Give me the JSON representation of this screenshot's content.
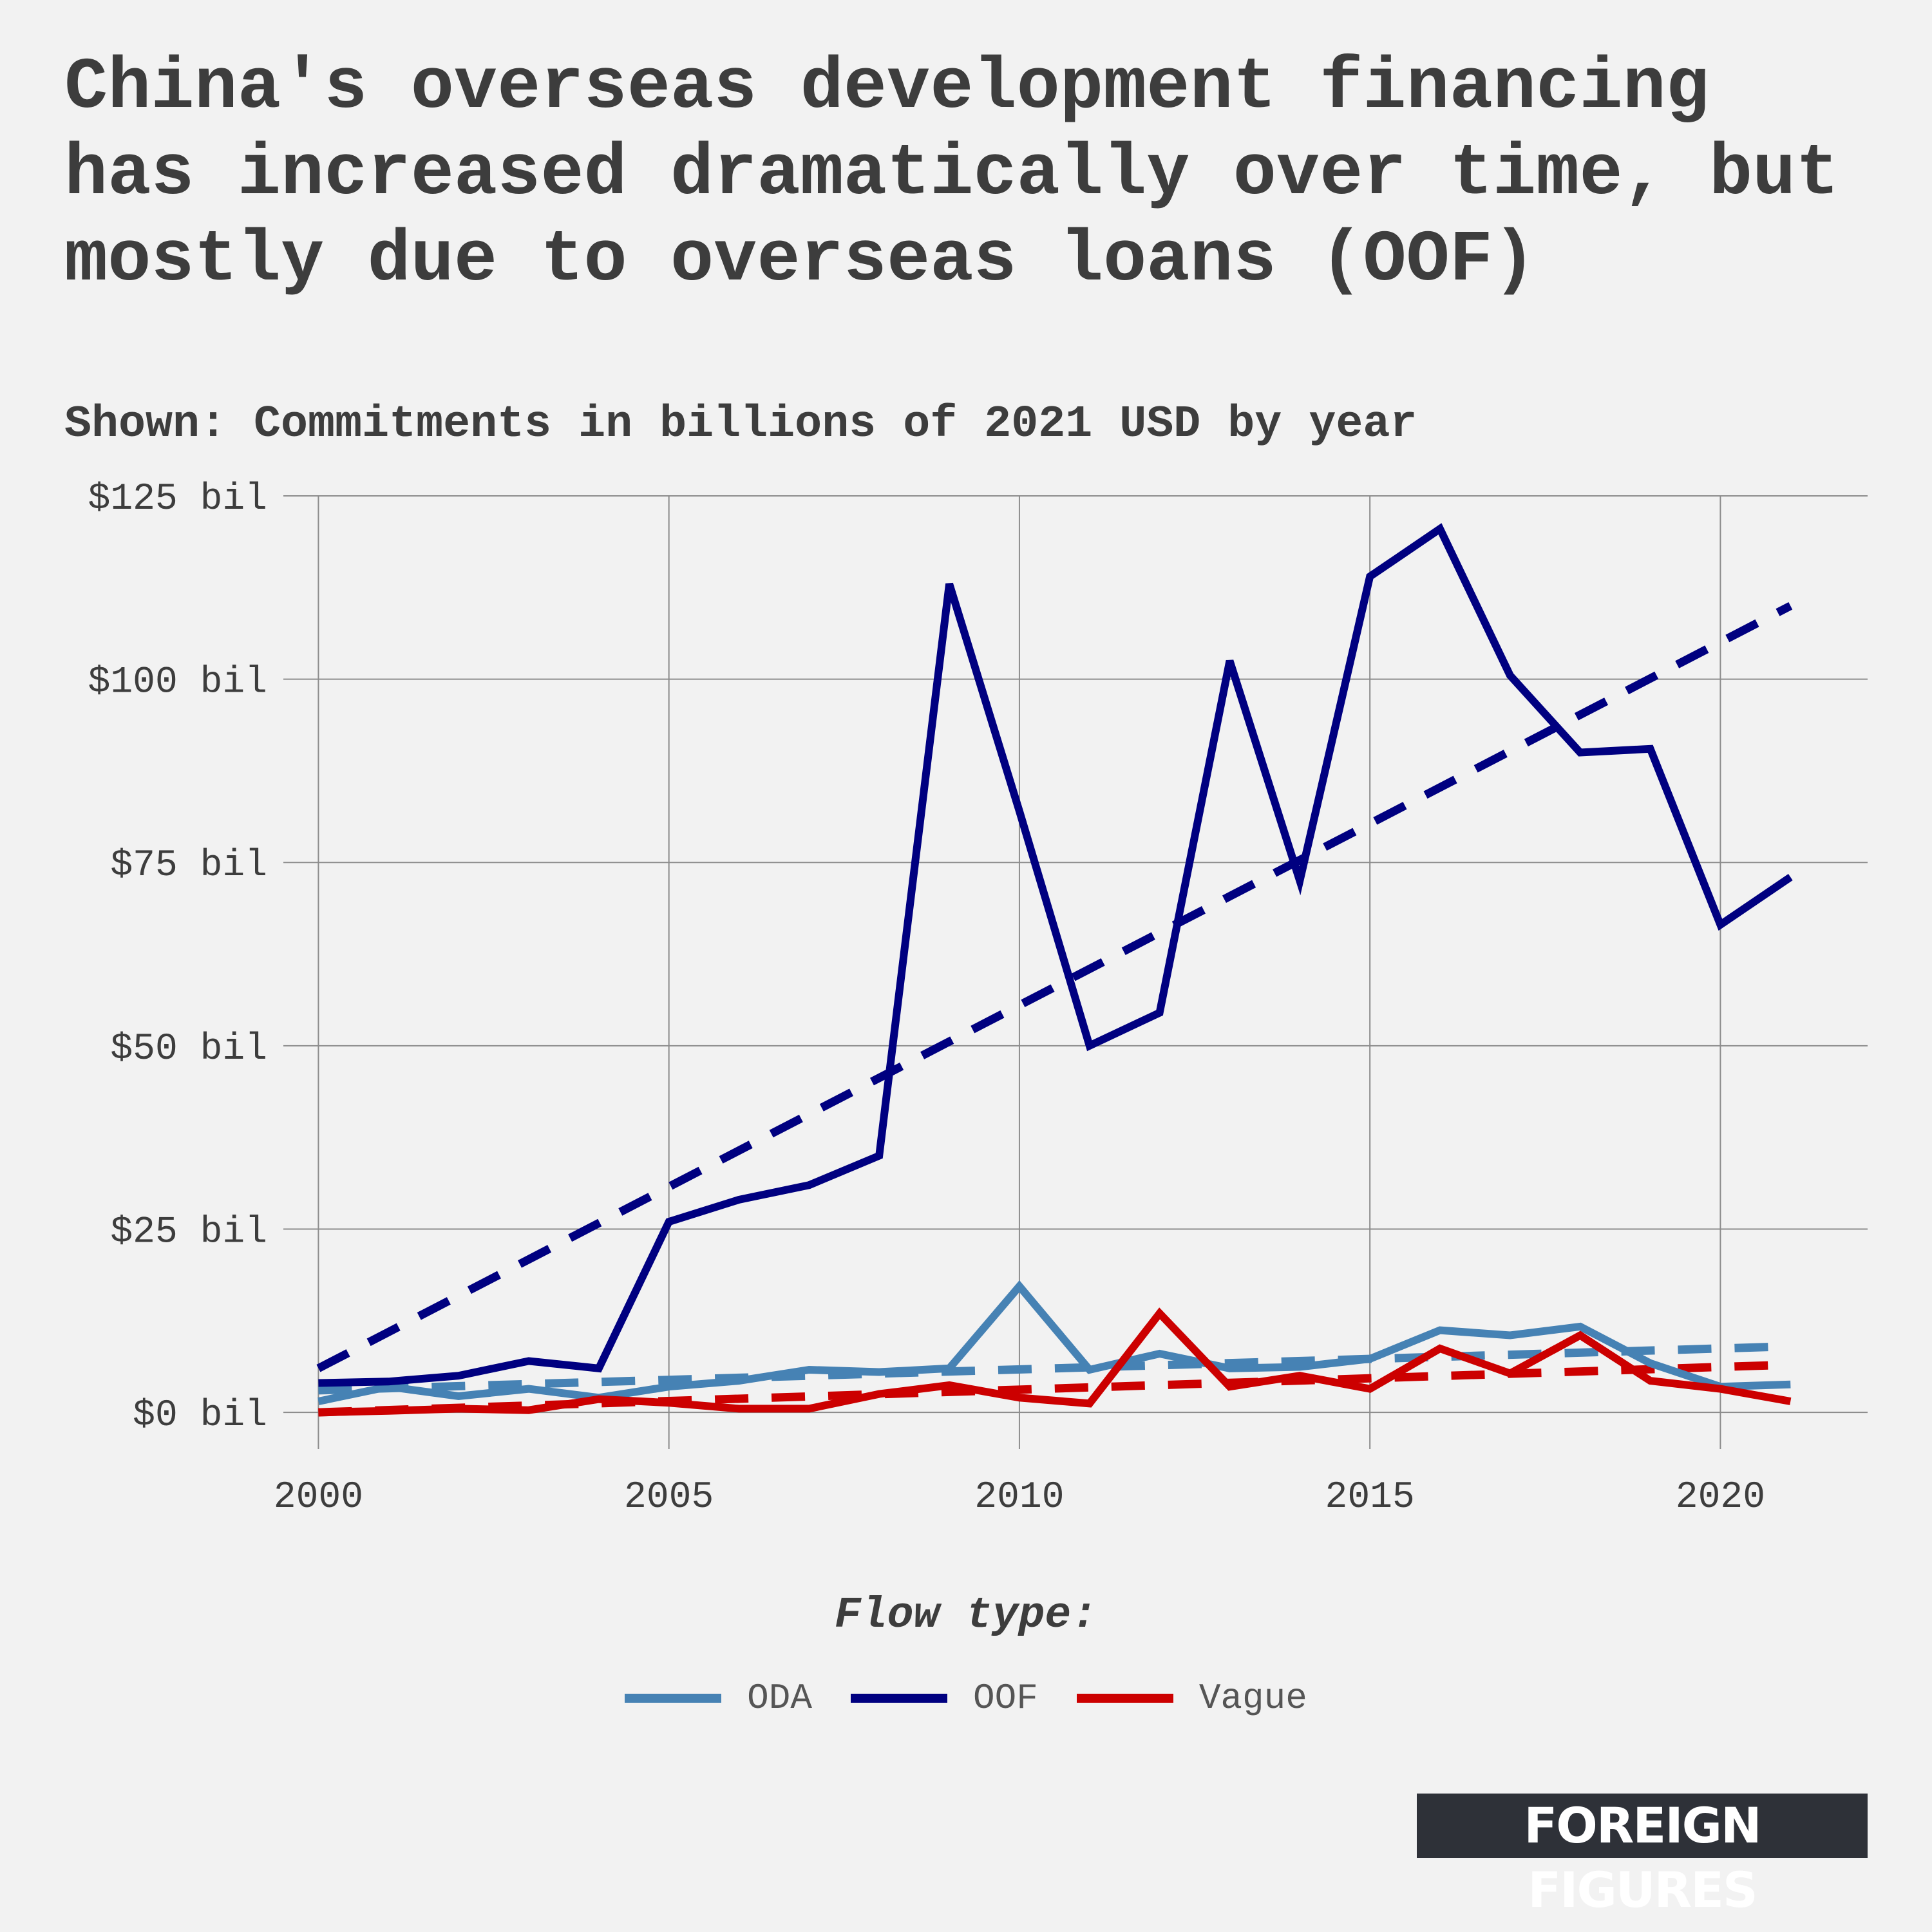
{
  "chart_data": {
    "type": "line",
    "title": "China's overseas development financing has increased dramatically over time, but mostly due to overseas loans (OOF)",
    "subtitle": "Shown: Commitments in billions of 2021 USD by year",
    "xlabel": "",
    "ylabel": "",
    "xlim": [
      1999.5,
      2022.1
    ],
    "ylim": [
      -5,
      125
    ],
    "x_ticks": [
      2000,
      2005,
      2010,
      2015,
      2020
    ],
    "x_tick_labels": [
      "2000",
      "2005",
      "2010",
      "2015",
      "2020"
    ],
    "y_ticks": [
      0,
      25,
      50,
      75,
      100,
      125
    ],
    "y_tick_labels": [
      "$0 bil",
      "$25 bil",
      "$50 bil",
      "$75 bil",
      "$100 bil",
      "$125 bil"
    ],
    "grid": true,
    "legend_title": "Flow type:",
    "legend_position": "bottom",
    "x": [
      2000,
      2001,
      2002,
      2003,
      2004,
      2005,
      2006,
      2007,
      2008,
      2009,
      2010,
      2011,
      2012,
      2013,
      2014,
      2015,
      2016,
      2017,
      2018,
      2019,
      2020,
      2021
    ],
    "series": [
      {
        "name": "ODA",
        "color": "#4682b4",
        "values": [
          1.5,
          3.5,
          2.2,
          3.2,
          2.0,
          3.5,
          4.3,
          5.8,
          5.5,
          6.0,
          17.2,
          5.8,
          8.0,
          6.0,
          6.2,
          7.3,
          11.2,
          10.5,
          11.7,
          6.7,
          3.5,
          3.8
        ],
        "trend": [
          3.0,
          9.0
        ]
      },
      {
        "name": "OOF",
        "color": "#000080",
        "values": [
          4.0,
          4.2,
          5.0,
          7.0,
          6.0,
          26.0,
          29.0,
          31.0,
          35.0,
          113.0,
          82.0,
          50.0,
          54.5,
          102.5,
          72.5,
          114.0,
          120.5,
          100.5,
          90.0,
          90.5,
          66.5,
          73.0
        ],
        "trend": [
          6.0,
          110.0
        ]
      },
      {
        "name": "Vague",
        "color": "#cc0000",
        "values": [
          0.0,
          0.2,
          0.5,
          0.3,
          1.8,
          1.3,
          0.5,
          0.5,
          2.5,
          3.7,
          2.0,
          1.2,
          13.5,
          3.5,
          5.0,
          3.2,
          8.7,
          5.3,
          10.5,
          4.3,
          3.2,
          1.5
        ],
        "trend": [
          0.0,
          6.5
        ]
      }
    ]
  },
  "brand": {
    "logo_text": "FOREIGN FIGURES"
  }
}
